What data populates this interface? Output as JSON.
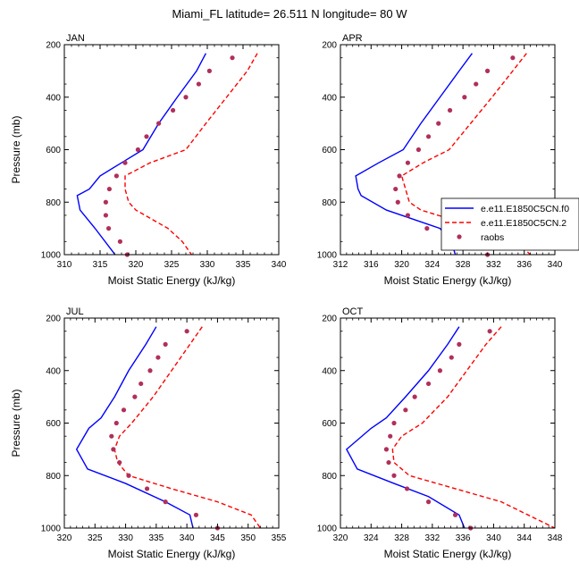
{
  "figure": {
    "title": "Miami_FL  latitude= 26.511 N longitude= 80 W"
  },
  "legend": {
    "entries": [
      {
        "label": "e.e11.E1850C5CN.f0",
        "color": "#0000ff",
        "style": "solid"
      },
      {
        "label": "e.e11.E1850C5CN.2",
        "color": "#ff0000",
        "style": "dashed"
      },
      {
        "label": "raobs",
        "color": "#b0305a",
        "style": "dots"
      }
    ]
  },
  "chart_data": [
    {
      "type": "line",
      "panel": "JAN",
      "xlabel": "Moist Static Energy (kJ/kg)",
      "ylabel": "Pressure (mb)",
      "xlim": [
        310,
        340
      ],
      "ylim": [
        1000,
        200
      ],
      "xticks": [
        310,
        315,
        320,
        325,
        330,
        335,
        340
      ],
      "yticks": [
        200,
        400,
        600,
        800,
        1000
      ],
      "y_inverted": true,
      "series": [
        {
          "name": "e.e11.E1850C5CN.f0",
          "color": "#0000ff",
          "style": "solid",
          "points": [
            [
              329.8,
              233
            ],
            [
              328.5,
              300
            ],
            [
              325.8,
              400
            ],
            [
              323.2,
              500
            ],
            [
              321.0,
              600
            ],
            [
              318.0,
              650
            ],
            [
              315.0,
              700
            ],
            [
              313.5,
              750
            ],
            [
              311.8,
              775
            ],
            [
              312.2,
              830
            ],
            [
              314.3,
              900
            ],
            [
              317.1,
              1000
            ]
          ]
        },
        {
          "name": "e.e11.E1850C5CN.2",
          "color": "#ff0000",
          "style": "dashed",
          "points": [
            [
              337.0,
              233
            ],
            [
              335.6,
              300
            ],
            [
              332.7,
              400
            ],
            [
              329.8,
              500
            ],
            [
              327.0,
              600
            ],
            [
              322.0,
              650
            ],
            [
              318.5,
              700
            ],
            [
              318.5,
              750
            ],
            [
              319.0,
              800
            ],
            [
              320.0,
              830
            ],
            [
              324.5,
              900
            ],
            [
              326.5,
              950
            ],
            [
              327.8,
              1000
            ]
          ]
        },
        {
          "name": "raobs",
          "color": "#b0305a",
          "style": "dots",
          "points": [
            [
              333.5,
              250
            ],
            [
              330.3,
              300
            ],
            [
              328.8,
              350
            ],
            [
              327.0,
              400
            ],
            [
              325.2,
              450
            ],
            [
              323.2,
              500
            ],
            [
              321.5,
              550
            ],
            [
              320.3,
              600
            ],
            [
              318.5,
              650
            ],
            [
              317.3,
              700
            ],
            [
              316.3,
              750
            ],
            [
              315.8,
              800
            ],
            [
              315.8,
              850
            ],
            [
              316.2,
              900
            ],
            [
              317.8,
              950
            ],
            [
              318.8,
              1000
            ]
          ]
        }
      ]
    },
    {
      "type": "line",
      "panel": "APR",
      "xlabel": "Moist Static Energy (kJ/kg)",
      "ylabel": "",
      "xlim": [
        312,
        340
      ],
      "ylim": [
        1000,
        200
      ],
      "xticks": [
        312,
        316,
        320,
        324,
        328,
        332,
        336,
        340
      ],
      "yticks": [
        200,
        400,
        600,
        800,
        1000
      ],
      "y_inverted": true,
      "series": [
        {
          "name": "e.e11.E1850C5CN.f0",
          "color": "#0000ff",
          "style": "solid",
          "points": [
            [
              329.2,
              233
            ],
            [
              327.5,
              300
            ],
            [
              325.0,
              400
            ],
            [
              322.5,
              500
            ],
            [
              320.2,
              600
            ],
            [
              317.0,
              650
            ],
            [
              314.0,
              700
            ],
            [
              314.3,
              750
            ],
            [
              314.7,
              775
            ],
            [
              318.0,
              830
            ],
            [
              322.0,
              870
            ],
            [
              325.0,
              900
            ],
            [
              326.5,
              950
            ],
            [
              327.0,
              1000
            ]
          ]
        },
        {
          "name": "e.e11.E1850C5CN.2",
          "color": "#ff0000",
          "style": "dashed",
          "points": [
            [
              336.3,
              233
            ],
            [
              334.5,
              300
            ],
            [
              331.8,
              400
            ],
            [
              329.0,
              500
            ],
            [
              326.2,
              600
            ],
            [
              322.8,
              650
            ],
            [
              320.0,
              700
            ],
            [
              320.5,
              750
            ],
            [
              321.0,
              800
            ],
            [
              322.5,
              830
            ],
            [
              327.0,
              870
            ],
            [
              332.2,
              900
            ],
            [
              335.0,
              950
            ],
            [
              336.8,
              1000
            ]
          ]
        },
        {
          "name": "raobs",
          "color": "#b0305a",
          "style": "dots",
          "points": [
            [
              334.5,
              250
            ],
            [
              331.2,
              300
            ],
            [
              329.7,
              350
            ],
            [
              328.2,
              400
            ],
            [
              326.3,
              450
            ],
            [
              324.8,
              500
            ],
            [
              323.5,
              550
            ],
            [
              322.2,
              600
            ],
            [
              320.8,
              650
            ],
            [
              319.7,
              700
            ],
            [
              319.2,
              750
            ],
            [
              319.5,
              800
            ],
            [
              320.8,
              850
            ],
            [
              323.3,
              900
            ],
            [
              328.7,
              950
            ],
            [
              331.2,
              1000
            ]
          ]
        }
      ]
    },
    {
      "type": "line",
      "panel": "JUL",
      "xlabel": "Moist Static Energy (kJ/kg)",
      "ylabel": "Pressure (mb)",
      "xlim": [
        320,
        355
      ],
      "ylim": [
        1000,
        200
      ],
      "xticks": [
        320,
        325,
        330,
        335,
        340,
        345,
        350,
        355
      ],
      "yticks": [
        200,
        400,
        600,
        800,
        1000
      ],
      "y_inverted": true,
      "series": [
        {
          "name": "e.e11.E1850C5CN.f0",
          "color": "#0000ff",
          "style": "solid",
          "points": [
            [
              335.0,
              233
            ],
            [
              333.3,
              300
            ],
            [
              330.5,
              400
            ],
            [
              328.2,
              500
            ],
            [
              326.0,
              580
            ],
            [
              324.0,
              620
            ],
            [
              322.0,
              700
            ],
            [
              323.8,
              775
            ],
            [
              330.0,
              830
            ],
            [
              336.5,
              900
            ],
            [
              340.5,
              950
            ],
            [
              341.0,
              1000
            ]
          ]
        },
        {
          "name": "e.e11.E1850C5CN.2",
          "color": "#ff0000",
          "style": "dashed",
          "points": [
            [
              342.5,
              233
            ],
            [
              340.5,
              300
            ],
            [
              337.5,
              400
            ],
            [
              334.5,
              500
            ],
            [
              331.0,
              600
            ],
            [
              329.0,
              650
            ],
            [
              328.2,
              700
            ],
            [
              328.7,
              750
            ],
            [
              330.5,
              800
            ],
            [
              337.5,
              850
            ],
            [
              345.0,
              900
            ],
            [
              350.5,
              950
            ],
            [
              352.0,
              1000
            ]
          ]
        },
        {
          "name": "raobs",
          "color": "#b0305a",
          "style": "dots",
          "points": [
            [
              340.0,
              250
            ],
            [
              336.5,
              300
            ],
            [
              335.3,
              350
            ],
            [
              334.0,
              400
            ],
            [
              332.5,
              450
            ],
            [
              331.5,
              500
            ],
            [
              329.7,
              550
            ],
            [
              328.5,
              600
            ],
            [
              327.7,
              650
            ],
            [
              328.0,
              700
            ],
            [
              329.0,
              750
            ],
            [
              330.5,
              800
            ],
            [
              333.5,
              850
            ],
            [
              336.5,
              900
            ],
            [
              341.5,
              950
            ],
            [
              345.0,
              1000
            ]
          ]
        }
      ]
    },
    {
      "type": "line",
      "panel": "OCT",
      "xlabel": "Moist Static Energy (kJ/kg)",
      "ylabel": "",
      "xlim": [
        320,
        348
      ],
      "ylim": [
        1000,
        200
      ],
      "xticks": [
        320,
        324,
        328,
        332,
        336,
        340,
        344,
        348
      ],
      "yticks": [
        200,
        400,
        600,
        800,
        1000
      ],
      "y_inverted": true,
      "series": [
        {
          "name": "e.e11.E1850C5CN.f0",
          "color": "#0000ff",
          "style": "solid",
          "points": [
            [
              335.5,
              233
            ],
            [
              334.0,
              300
            ],
            [
              331.5,
              400
            ],
            [
              328.5,
              500
            ],
            [
              326.0,
              580
            ],
            [
              324.0,
              620
            ],
            [
              320.8,
              700
            ],
            [
              322.2,
              775
            ],
            [
              327.0,
              830
            ],
            [
              331.5,
              880
            ],
            [
              335.5,
              950
            ],
            [
              336.2,
              1000
            ]
          ]
        },
        {
          "name": "e.e11.E1850C5CN.2",
          "color": "#ff0000",
          "style": "dashed",
          "points": [
            [
              341.0,
              233
            ],
            [
              339.0,
              300
            ],
            [
              336.5,
              400
            ],
            [
              334.0,
              500
            ],
            [
              330.7,
              600
            ],
            [
              328.0,
              650
            ],
            [
              326.8,
              700
            ],
            [
              327.0,
              750
            ],
            [
              329.0,
              800
            ],
            [
              335.0,
              850
            ],
            [
              341.0,
              900
            ],
            [
              344.5,
              950
            ],
            [
              348.0,
              1000
            ]
          ]
        },
        {
          "name": "raobs",
          "color": "#b0305a",
          "style": "dots",
          "points": [
            [
              339.5,
              250
            ],
            [
              335.5,
              300
            ],
            [
              334.5,
              350
            ],
            [
              333.0,
              400
            ],
            [
              331.5,
              450
            ],
            [
              329.7,
              500
            ],
            [
              328.5,
              550
            ],
            [
              327.0,
              600
            ],
            [
              326.5,
              650
            ],
            [
              326.0,
              700
            ],
            [
              326.3,
              750
            ],
            [
              327.0,
              800
            ],
            [
              328.7,
              850
            ],
            [
              331.5,
              900
            ],
            [
              335.0,
              950
            ],
            [
              337.0,
              1000
            ]
          ]
        }
      ]
    }
  ]
}
